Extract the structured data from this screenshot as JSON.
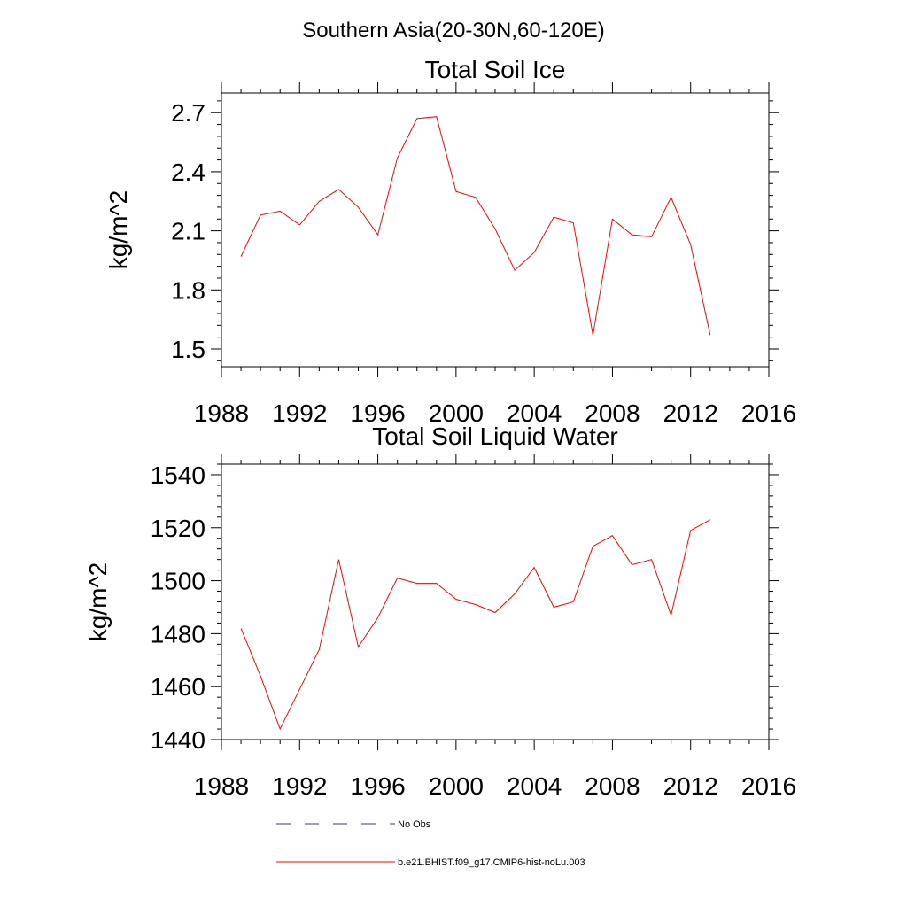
{
  "figure": {
    "suptitle": "Southern Asia(20-30N,60-120E)"
  },
  "legend": {
    "entries": [
      {
        "label": "No Obs",
        "color": "#3a3a7a",
        "dashed": true
      },
      {
        "label": "b.e21.BHIST.f09_g17.CMIP6-hist-noLu.003",
        "color": "#ff0000",
        "dashed": false
      }
    ]
  },
  "chart_data": [
    {
      "type": "line",
      "title": "Total Soil Ice",
      "xlabel": "",
      "ylabel": "kg/m^2",
      "xlim": [
        1988,
        2016
      ],
      "ylim": [
        1.41,
        2.8
      ],
      "xticks": [
        1988,
        1992,
        1996,
        2000,
        2004,
        2008,
        2012,
        2016
      ],
      "yticks": [
        1.5,
        1.8,
        2.1,
        2.4,
        2.7
      ],
      "grid": false,
      "series": [
        {
          "color": "#ff0000",
          "x": [
            1989,
            1990,
            1991,
            1992,
            1993,
            1994,
            1995,
            1996,
            1997,
            1998,
            1999,
            2000,
            2001,
            2002,
            2003,
            2004,
            2005,
            2006,
            2007,
            2008,
            2009,
            2010,
            2011,
            2012,
            2013
          ],
          "y": [
            1.97,
            2.18,
            2.2,
            2.13,
            2.25,
            2.31,
            2.22,
            2.08,
            2.47,
            2.67,
            2.68,
            2.3,
            2.27,
            2.11,
            1.9,
            1.99,
            2.17,
            2.14,
            1.57,
            2.16,
            2.08,
            2.07,
            2.27,
            2.03,
            1.57
          ]
        }
      ]
    },
    {
      "type": "line",
      "title": "Total Soil Liquid Water",
      "xlabel": "",
      "ylabel": "kg/m^2",
      "xlim": [
        1988,
        2016
      ],
      "ylim": [
        1440,
        1544
      ],
      "xticks": [
        1988,
        1992,
        1996,
        2000,
        2004,
        2008,
        2012,
        2016
      ],
      "yticks": [
        1440,
        1460,
        1480,
        1500,
        1520,
        1540
      ],
      "grid": false,
      "series": [
        {
          "color": "#ff0000",
          "x": [
            1989,
            1990,
            1991,
            1992,
            1993,
            1994,
            1995,
            1996,
            1997,
            1998,
            1999,
            2000,
            2001,
            2002,
            2003,
            2004,
            2005,
            2006,
            2007,
            2008,
            2009,
            2010,
            2011,
            2012,
            2013
          ],
          "y": [
            1482,
            1464,
            1444,
            1459,
            1474,
            1508,
            1475,
            1486,
            1501,
            1499,
            1499,
            1493,
            1491,
            1488,
            1495,
            1505,
            1490,
            1492,
            1513,
            1517,
            1506,
            1508,
            1487,
            1519,
            1523
          ]
        }
      ]
    }
  ]
}
